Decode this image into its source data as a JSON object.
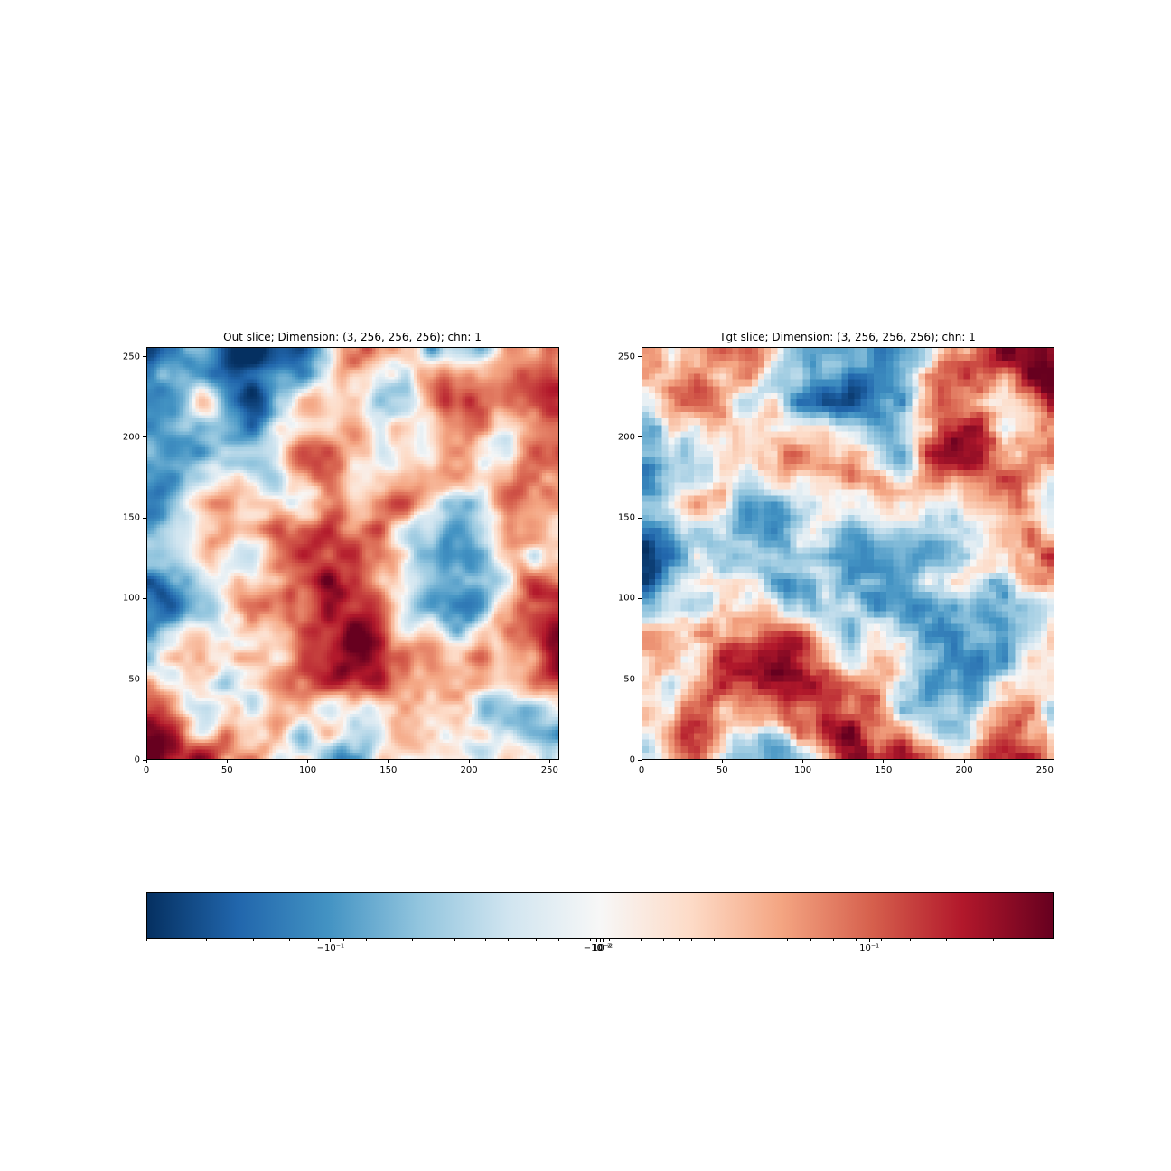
{
  "chart_data": [
    {
      "type": "heatmap",
      "title": "Out slice; Dimension: (3, 256, 256, 256); chn: 1",
      "xlabel": "",
      "ylabel": "",
      "xlim": [
        0,
        256
      ],
      "ylim": [
        0,
        256
      ],
      "xticks": [
        "0",
        "50",
        "100",
        "150",
        "200",
        "250"
      ],
      "yticks": [
        "0",
        "50",
        "100",
        "150",
        "200",
        "250"
      ],
      "colormap": "RdBu_r",
      "grid": false
    },
    {
      "type": "heatmap",
      "title": "Tgt slice; Dimension: (3, 256, 256, 256); chn: 1",
      "xlabel": "",
      "ylabel": "",
      "xlim": [
        0,
        256
      ],
      "ylim": [
        0,
        256
      ],
      "xticks": [
        "0",
        "50",
        "100",
        "150",
        "200",
        "250"
      ],
      "yticks": [
        "0",
        "50",
        "100",
        "150",
        "200",
        "250"
      ],
      "colormap": "RdBu_r",
      "grid": false
    }
  ],
  "colorbar": {
    "scale": "symlog",
    "colors": [
      "#053061",
      "#2166ac",
      "#4393c3",
      "#92c5de",
      "#d1e5f0",
      "#f7f7f7",
      "#fddbc7",
      "#f4a582",
      "#d6604d",
      "#b2182b",
      "#67001f"
    ],
    "tick_labels": [
      "−10⁻¹",
      "−10⁻²",
      "0",
      "10⁻²",
      "10⁻¹"
    ]
  }
}
